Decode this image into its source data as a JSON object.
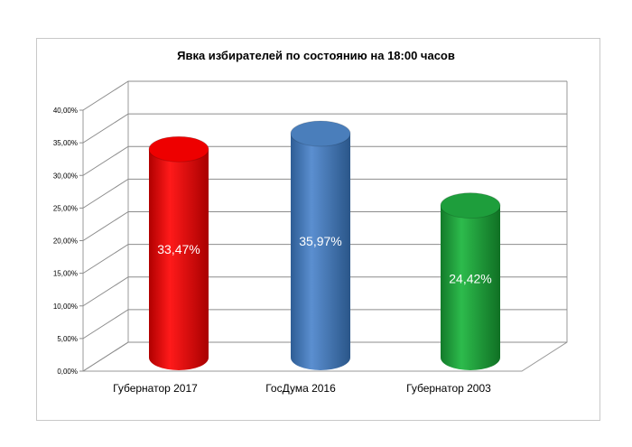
{
  "chart_data": {
    "type": "bar",
    "title": "Явка избирателей по состоянию на 18:00 часов",
    "categories": [
      "Губернатор 2017",
      "ГосДума 2016",
      "Губернатор 2003"
    ],
    "values": [
      33.47,
      35.97,
      24.42
    ],
    "data_labels": [
      "33,47%",
      "35,97%",
      "24,42%"
    ],
    "y_ticks": [
      "0,00%",
      "5,00%",
      "10,00%",
      "15,00%",
      "20,00%",
      "25,00%",
      "30,00%",
      "35,00%",
      "40,00%"
    ],
    "ylim": [
      0,
      40
    ],
    "colors": [
      "#ee0000",
      "#4a7ebb",
      "#1e9e3c"
    ],
    "grid": true,
    "style": "3d-cylinder"
  }
}
